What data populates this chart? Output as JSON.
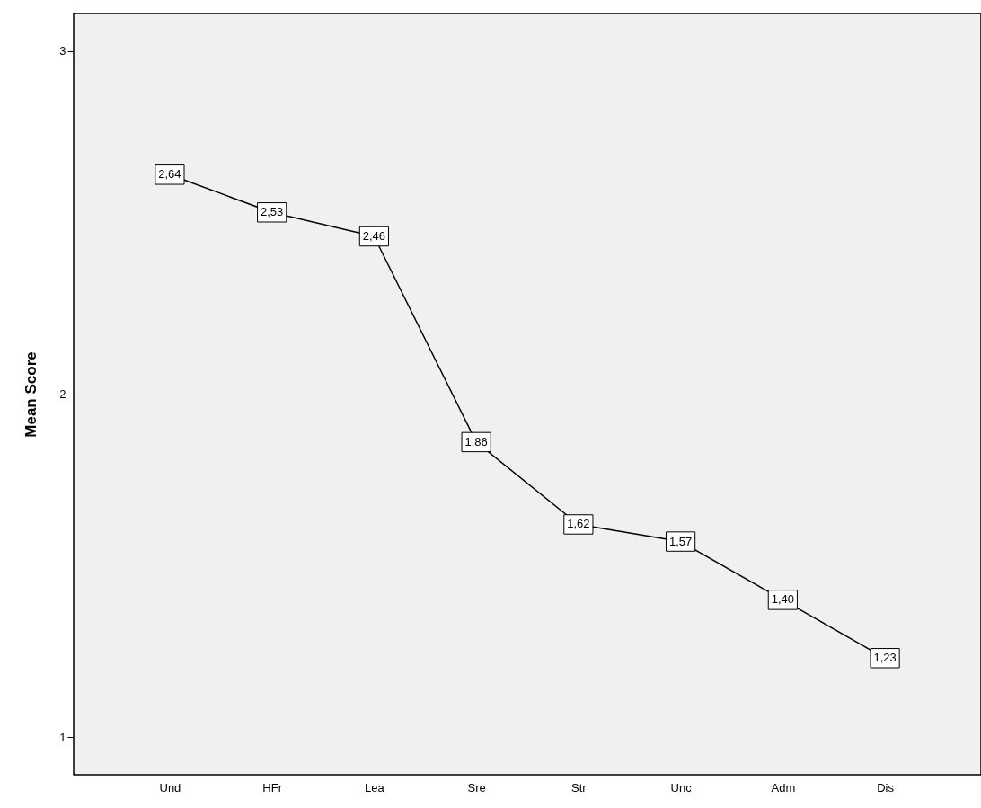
{
  "chart_data": {
    "type": "line",
    "ylabel": "Mean Score",
    "categories": [
      "Und",
      "HFr",
      "Lea",
      "Sre",
      "Str",
      "Unc",
      "Adm",
      "Dis"
    ],
    "values": [
      2.64,
      2.53,
      2.46,
      1.86,
      1.62,
      1.57,
      1.4,
      1.23
    ],
    "value_labels": [
      "2,64",
      "2,53",
      "2,46",
      "1,86",
      "1,62",
      "1,57",
      "1,40",
      "1,23"
    ],
    "color": "#000000",
    "marker": "square",
    "line_style": "solid",
    "ylim": [
      0.89,
      3.11
    ],
    "yticks": [
      1,
      2,
      3
    ]
  }
}
